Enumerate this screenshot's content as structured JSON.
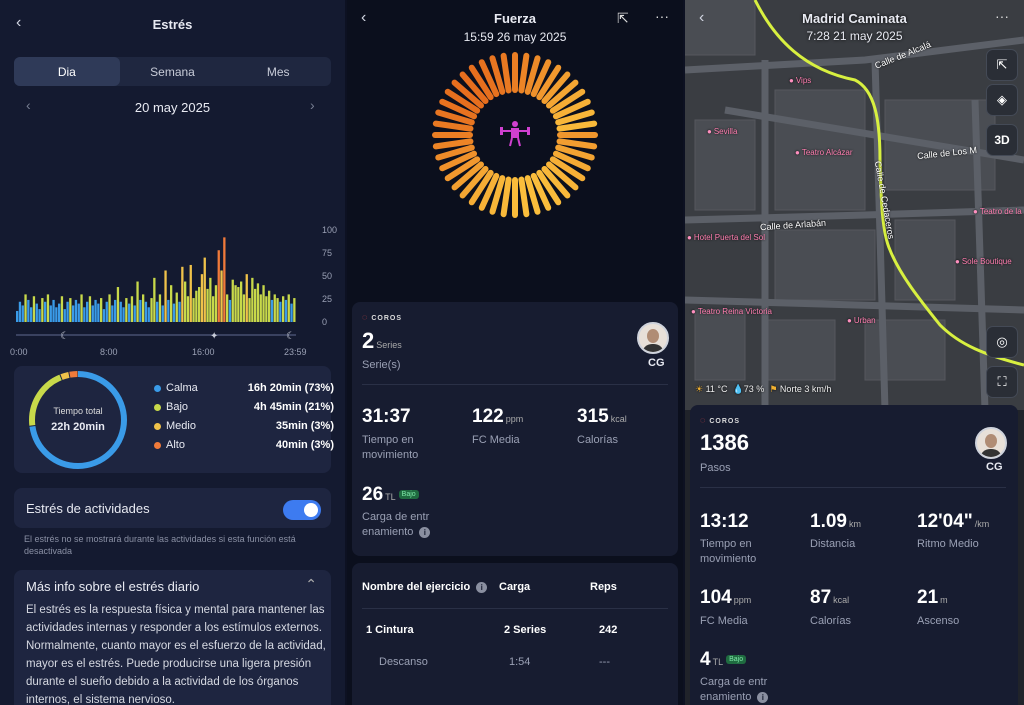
{
  "stress": {
    "title": "Estrés",
    "tabs": [
      "Dia",
      "Semana",
      "Mes"
    ],
    "date": "20 may 2025",
    "yticks": [
      "100",
      "75",
      "50",
      "25",
      "0"
    ],
    "xticks": [
      "0:00",
      "8:00",
      "16:00",
      "23:59"
    ],
    "ring_center_label": "Tiempo total",
    "ring_center_value": "22h 20min",
    "legend": [
      {
        "label": "Calma",
        "value": "16h 20min (73%)",
        "color": "#3a9be8",
        "fraction": 0.73
      },
      {
        "label": "Bajo",
        "value": "4h 45min (21%)",
        "color": "#c8d94a",
        "fraction": 0.21
      },
      {
        "label": "Medio",
        "value": "35min (3%)",
        "color": "#f0c24a",
        "fraction": 0.03
      },
      {
        "label": "Alto",
        "value": "40min (3%)",
        "color": "#f07a3a",
        "fraction": 0.03
      }
    ],
    "activity_toggle_label": "Estrés de actividades",
    "activity_toggle_on": true,
    "activity_note": "El estrés no se mostrará durante las actividades si esta función está desactivada",
    "more_info_title": "Más info sobre el estrés diario",
    "more_info_text": "El estrés es la respuesta física y mental para mantener las actividades internas y responder a los estímulos externos. Normalmente, cuanto mayor es el esfuerzo de la actividad, mayor es el estrés. Puede producirse una ligera presión durante el sueño debido a la actividad de los órganos internos, el sistema nervioso."
  },
  "chart_data": {
    "type": "bar",
    "title": "",
    "ylim": [
      0,
      100
    ],
    "y_ticks": [
      0,
      25,
      50,
      75,
      100
    ],
    "x_ticks": [
      "0:00",
      "8:00",
      "16:00",
      "23:59"
    ],
    "grid": false,
    "series": [
      {
        "name": "Calma",
        "color": "#3a9be8"
      },
      {
        "name": "Bajo",
        "color": "#c8d94a"
      },
      {
        "name": "Medio",
        "color": "#f0c24a"
      },
      {
        "name": "Alto",
        "color": "#f07a3a"
      }
    ],
    "values": [
      12,
      22,
      18,
      30,
      24,
      16,
      28,
      20,
      14,
      26,
      22,
      30,
      18,
      24,
      16,
      20,
      28,
      14,
      22,
      26,
      18,
      24,
      20,
      30,
      16,
      22,
      28,
      18,
      24,
      20,
      26,
      14,
      22,
      30,
      18,
      24,
      38,
      22,
      16,
      26,
      20,
      28,
      18,
      44,
      24,
      30,
      22,
      16,
      26,
      48,
      22,
      30,
      18,
      56,
      24,
      40,
      20,
      32,
      22,
      60,
      44,
      28,
      62,
      26,
      34,
      38,
      52,
      70,
      36,
      48,
      28,
      40,
      78,
      56,
      92,
      30,
      24,
      46,
      40,
      38,
      44,
      30,
      52,
      26,
      48,
      36,
      42,
      30,
      40,
      28,
      34,
      24,
      30,
      26,
      22,
      28,
      24,
      30,
      20,
      26
    ]
  },
  "strength": {
    "title": "Fuerza",
    "datetime": "15:59 26 may 2025",
    "brand": "COROS",
    "series_value": "2",
    "series_unit": "Series",
    "series_label": "Serie(s)",
    "user_initials": "CG",
    "time_value": "31:37",
    "time_label": "Tiempo en movimiento",
    "hr_value": "122",
    "hr_unit": "ppm",
    "hr_label": "FC Media",
    "cal_value": "315",
    "cal_unit": "kcal",
    "cal_label": "Calorías",
    "load_value": "26",
    "load_unit": "TL",
    "load_badge": "Bajo",
    "load_label": "Carga de entr enamiento",
    "table_headers": [
      "Nombre del ejercicio",
      "Carga",
      "Reps"
    ],
    "rows": [
      {
        "name": "1 Cintura",
        "load": "2 Series",
        "reps": "242"
      },
      {
        "name": "Descanso",
        "load": "1:54",
        "reps": "---"
      }
    ]
  },
  "walk": {
    "title": "Madrid Caminata",
    "datetime": "7:28 21 may 2025",
    "map_btn_3d": "3D",
    "streets": [
      "Calle de Alcalá",
      "Calle de Los M",
      "Calle de Cedaceros",
      "Calle de Arlabán"
    ],
    "pois": [
      "Teatro Alcázar",
      "Sevilla",
      "Teatro Reina Victoria",
      "Urban",
      "Teatro de la",
      "Sole Boutique",
      "Hotel Puerta del Sol",
      "Vips"
    ],
    "weather": {
      "temp": "11 °C",
      "humidity": "73 %",
      "wind": "Norte 3 km/h"
    },
    "brand": "COROS",
    "steps_value": "1386",
    "steps_label": "Pasos",
    "user_initials": "CG",
    "time_value": "13:12",
    "time_label": "Tiempo en movimiento",
    "dist_value": "1.09",
    "dist_unit": "km",
    "dist_label": "Distancia",
    "pace_value": "12'04\"",
    "pace_unit": "/km",
    "pace_label": "Ritmo Medio",
    "hr_value": "104",
    "hr_unit": "ppm",
    "hr_label": "FC Media",
    "cal_value": "87",
    "cal_unit": "kcal",
    "cal_label": "Calorías",
    "asc_value": "21",
    "asc_unit": "m",
    "asc_label": "Ascenso",
    "load_value": "4",
    "load_unit": "TL",
    "load_badge": "Bajo",
    "load_label": "Carga de entr enamiento"
  }
}
